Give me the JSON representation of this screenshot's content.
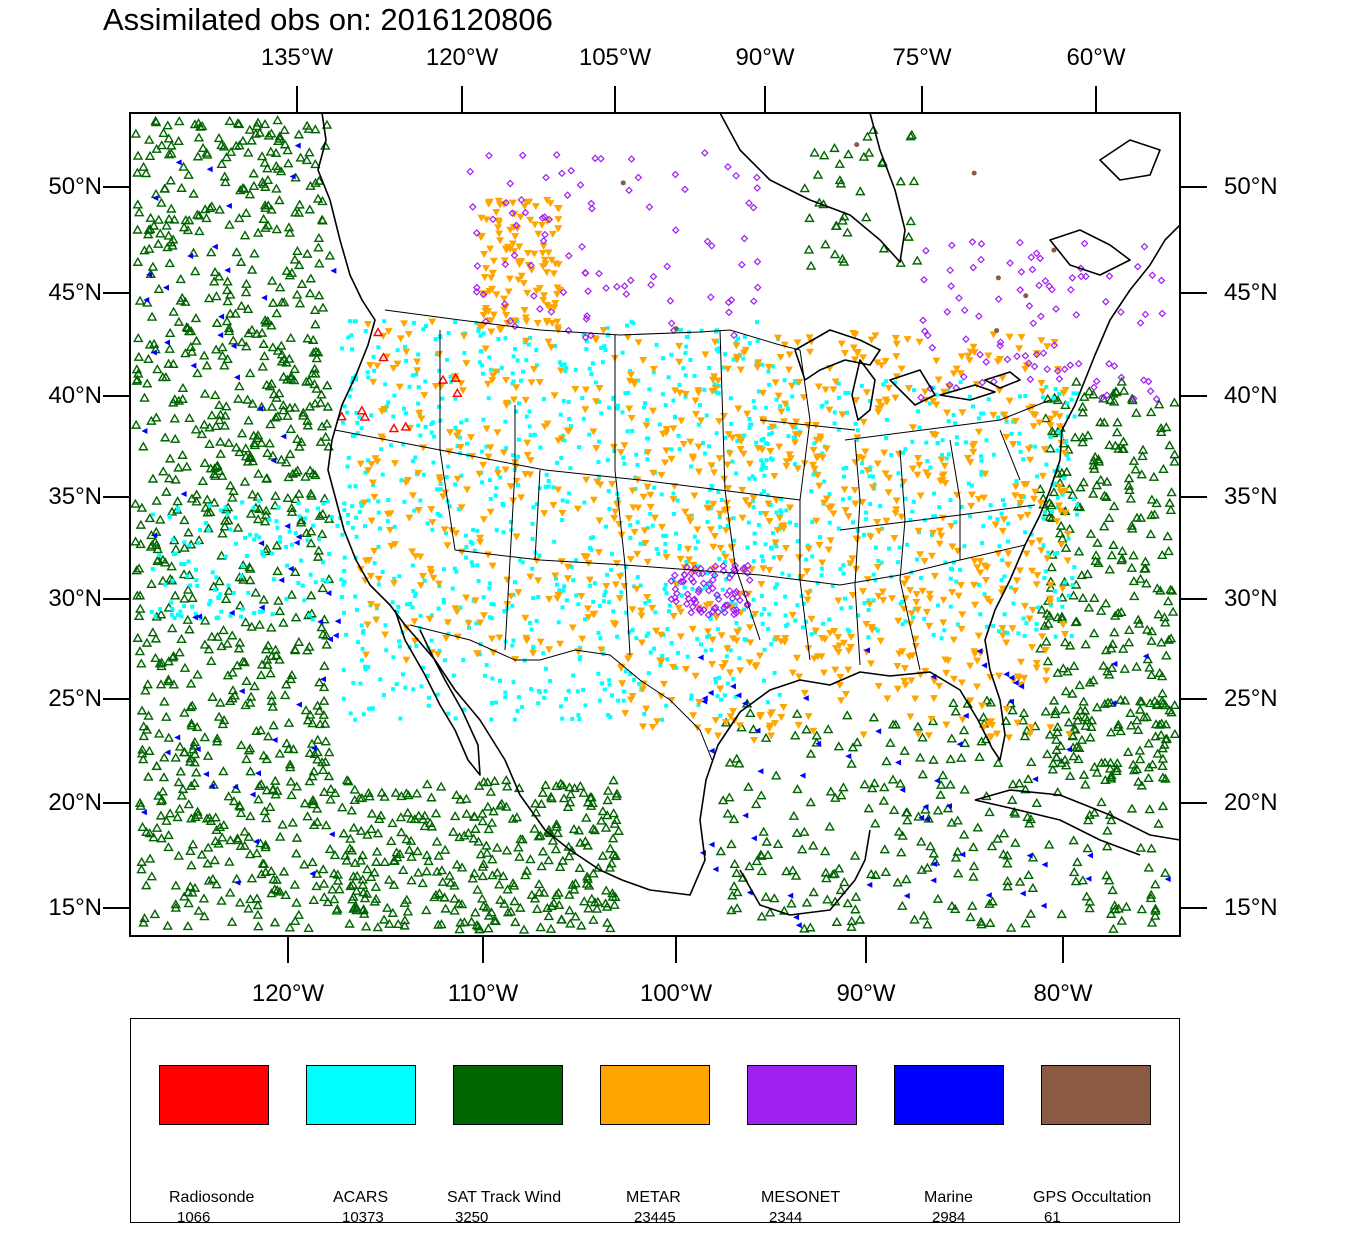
{
  "title": "Assimilated obs on: 2016120806",
  "axes": {
    "top_lon_labels": [
      "135°W",
      "120°W",
      "105°W",
      "90°W",
      "75°W",
      "60°W"
    ],
    "bottom_lon_labels": [
      "120°W",
      "110°W",
      "100°W",
      "90°W",
      "80°W"
    ],
    "left_lat_labels": [
      "50°N",
      "45°N",
      "40°N",
      "35°N",
      "30°N",
      "25°N",
      "20°N",
      "15°N"
    ],
    "right_lat_labels": [
      "50°N",
      "45°N",
      "40°N",
      "35°N",
      "30°N",
      "25°N",
      "20°N",
      "15°N"
    ]
  },
  "map": {
    "projection": "Lambert conformal",
    "lat_range": [
      14,
      53
    ],
    "lon_range": [
      -128,
      -74
    ],
    "land_color": "#ffffff",
    "boundary_color": "#000000"
  },
  "legend": [
    {
      "name": "Radiosonde",
      "count": "1066",
      "color": "#ff0000",
      "marker": "triangle"
    },
    {
      "name": "ACARS",
      "count": "10373",
      "color": "#00ffff",
      "marker": "square"
    },
    {
      "name": "SAT Track Wind",
      "count": "3250",
      "color": "#006400",
      "marker": "triangle"
    },
    {
      "name": "METAR",
      "count": "23445",
      "color": "#ffa500",
      "marker": "inverted-triangle"
    },
    {
      "name": "MESONET",
      "count": "2344",
      "color": "#a020f0",
      "marker": "diamond"
    },
    {
      "name": "Marine",
      "count": "2984",
      "color": "#0000ff",
      "marker": "triangle-left"
    },
    {
      "name": "GPS Occultation",
      "count": "61",
      "color": "#8b5a42",
      "marker": "circle"
    }
  ]
}
